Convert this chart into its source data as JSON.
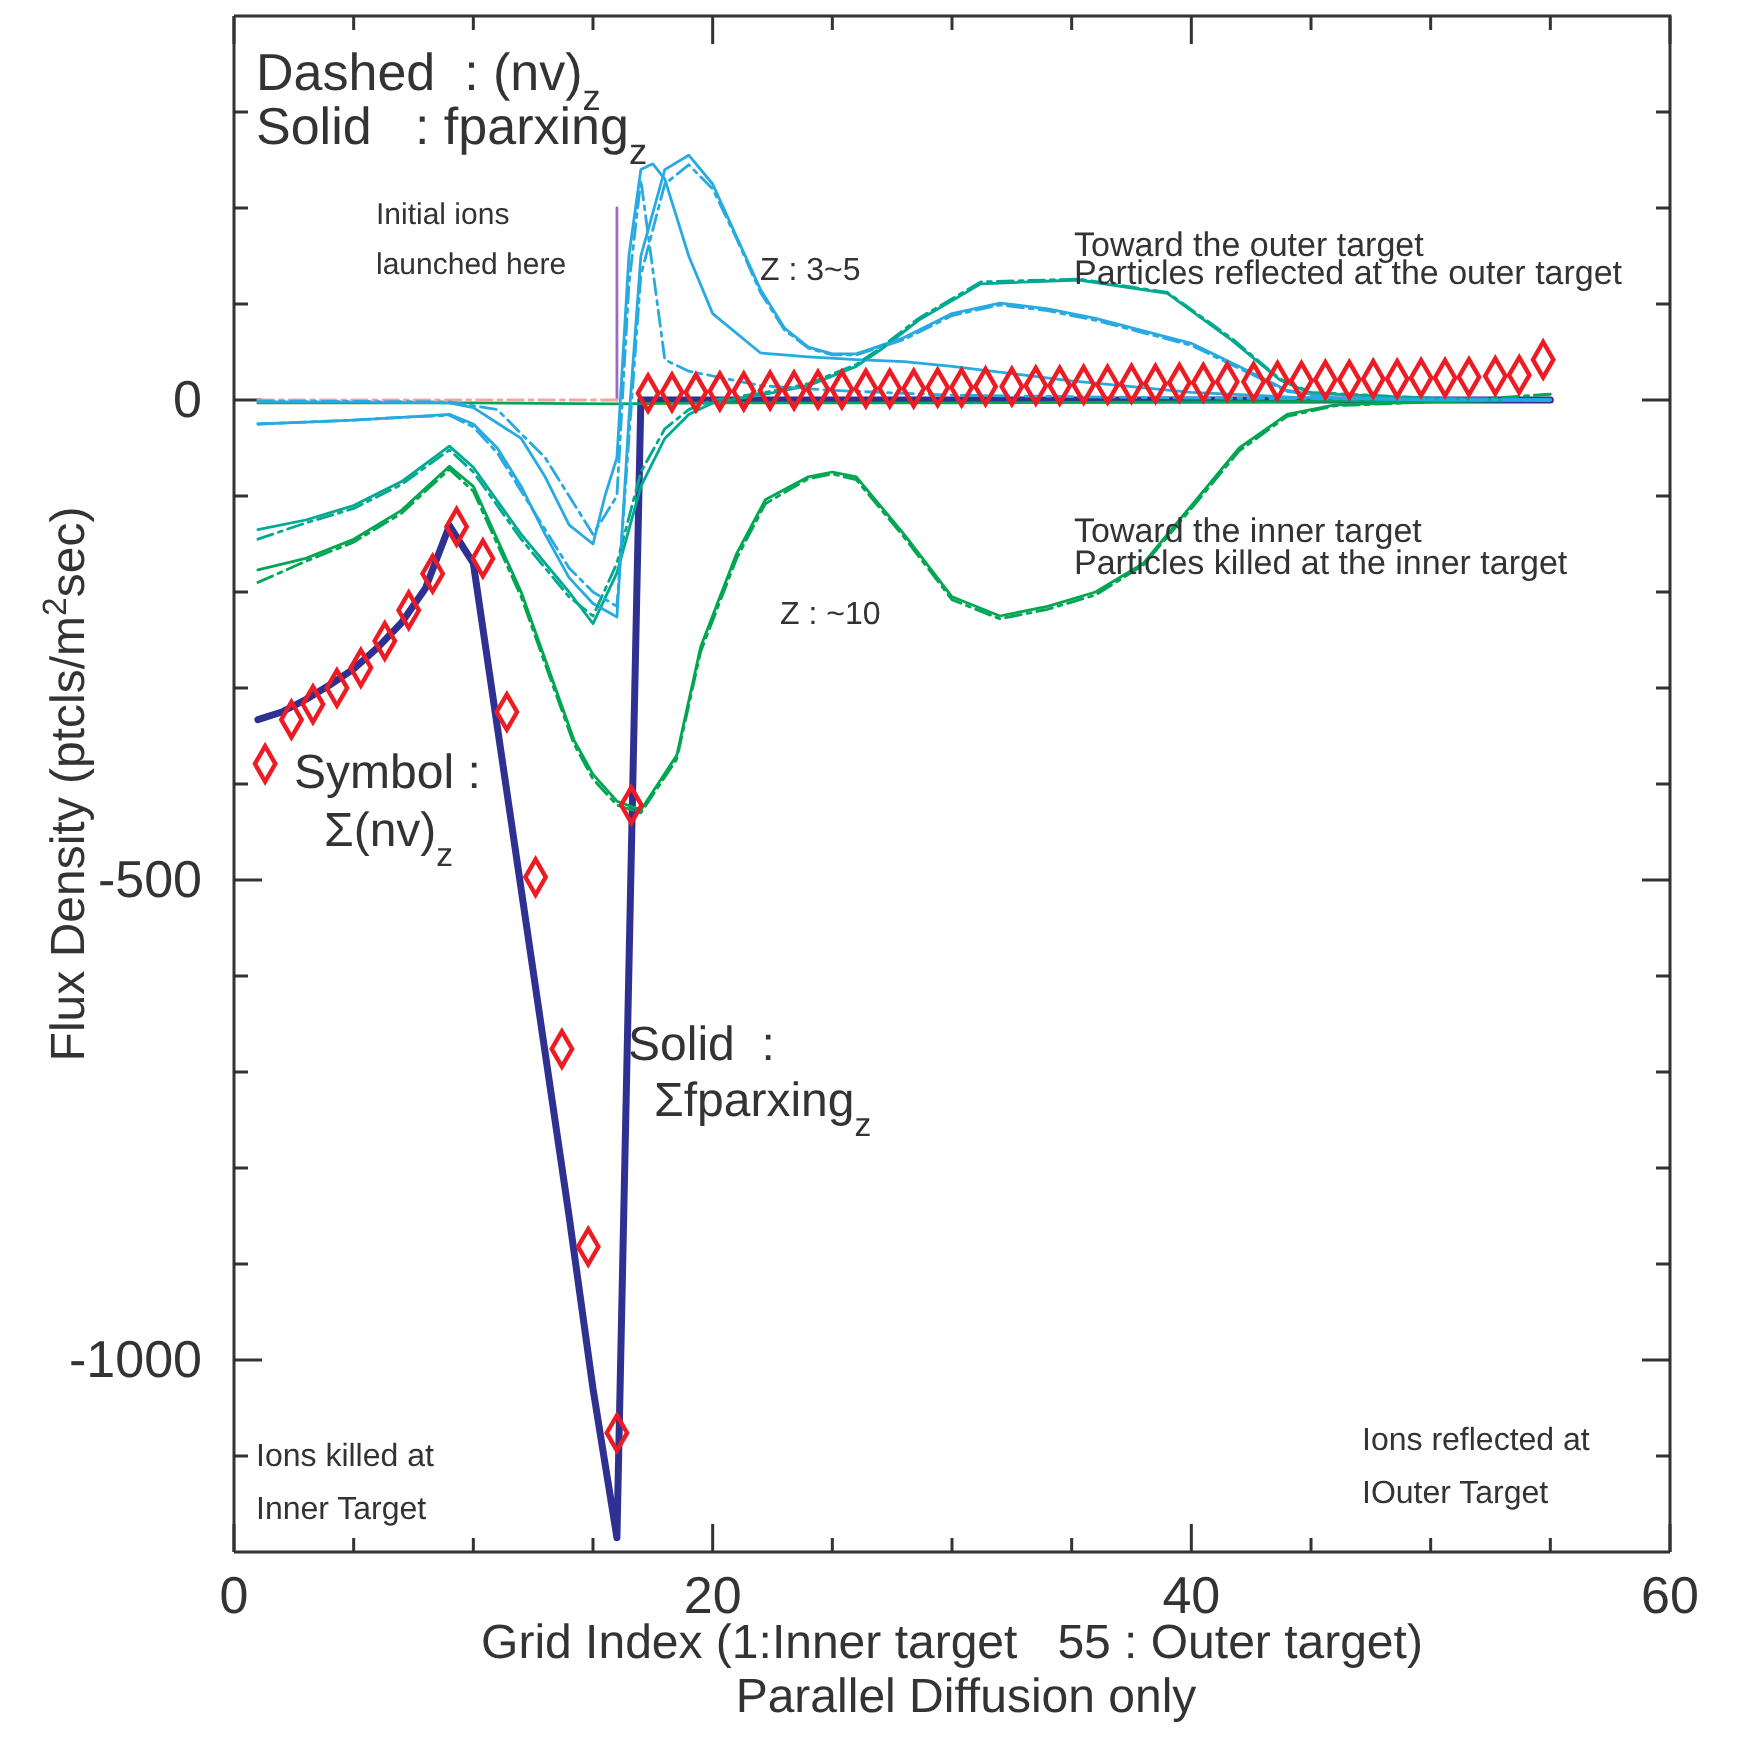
{
  "chart_data": {
    "type": "line",
    "xlabel": "Grid Index (1:Inner target   55 : Outer target)\nParallel Diffusion only",
    "ylabel": "Flux Density (ptcls/m$^{2}$sec)",
    "xlim": [
      0,
      60
    ],
    "ylim": [
      -1200,
      400
    ],
    "xticks": [
      0,
      {
        "value": 5,
        "label": null
      },
      {
        "value": 10,
        "label": null
      },
      {
        "value": 15,
        "label": null
      },
      20,
      {
        "value": 25,
        "label": null
      },
      {
        "value": 30,
        "label": null
      },
      {
        "value": 35,
        "label": null
      },
      40,
      {
        "value": 45,
        "label": null
      },
      {
        "value": 50,
        "label": null
      },
      {
        "value": 55,
        "label": null
      },
      60
    ],
    "yticks": [
      {
        "value": -1100,
        "label": null
      },
      -1000,
      {
        "value": -900,
        "label": null
      },
      {
        "value": -800,
        "label": null
      },
      {
        "value": -700,
        "label": null
      },
      {
        "value": -600,
        "label": null
      },
      -500,
      {
        "value": -400,
        "label": null
      },
      {
        "value": -300,
        "label": null
      },
      {
        "value": -200,
        "label": null
      },
      {
        "value": -100,
        "label": null
      },
      0,
      {
        "value": 100,
        "label": null
      },
      {
        "value": 200,
        "label": null
      },
      {
        "value": 300,
        "label": null
      }
    ],
    "grid": false,
    "annotations": [
      "Dashed  : (nv)$_{z}$",
      "Solid   : fparxing$_{z}$",
      "Initial ions\nlaunched here",
      "Z : 3~5",
      "Toward the outer target",
      "Particles reflected at the outer target",
      "Toward the inner target",
      "Particles killed at the inner target",
      "Z : ~10",
      "Symbol :",
      "Σ(nv)$_{z}$",
      "Solid  :",
      "Σfparxing$_{z}$",
      "Ions killed at\nInner Target",
      "Ions reflected at\nIOuter Target"
    ],
    "series": [
      {
        "color": "#2e3192",
        "line_style": "solid",
        "x": [
          1,
          2,
          3,
          4,
          5,
          6,
          7,
          8,
          9,
          10,
          11,
          12,
          13,
          14,
          15,
          16,
          17,
          55
        ],
        "values": [
          -333,
          -325,
          -312,
          -297,
          -280,
          -258,
          -232,
          -196,
          -131,
          -170,
          -340,
          -510,
          -680,
          -850,
          -1030,
          -1185,
          0,
          0
        ]
      },
      {
        "color": "#f4a3a3",
        "line_style": "dashed",
        "x": [
          1,
          16
        ],
        "values": [
          0,
          0
        ]
      },
      {
        "color": "#00a651",
        "line_style": "solid",
        "x": [
          1,
          10,
          16,
          20,
          30,
          40,
          50,
          55
        ],
        "values": [
          -3,
          -3,
          -4,
          -3,
          -3,
          -2,
          -1,
          0
        ]
      },
      {
        "color": "#00a651",
        "line_style": "solid",
        "x": [
          1,
          3,
          5,
          7,
          9,
          10,
          12,
          12.5,
          13,
          14.2,
          15,
          16,
          17,
          18.5,
          19.5,
          21,
          22.2,
          24,
          25,
          26,
          28,
          30,
          32,
          34,
          36,
          38,
          40,
          42,
          44,
          46,
          50,
          55
        ],
        "values": [
          -177,
          -165,
          -145,
          -115,
          -69,
          -90,
          -200,
          -235,
          -270,
          -354,
          -390,
          -418,
          -427,
          -370,
          -257,
          -160,
          -104,
          -80,
          -75,
          -80,
          -140,
          -205,
          -225,
          -215,
          -200,
          -170,
          -110,
          -50,
          -15,
          -5,
          -2,
          0
        ]
      },
      {
        "color": "#00a651",
        "line_style": "dashed",
        "x": [
          1,
          3,
          5,
          7,
          9,
          10,
          12,
          13,
          14.2,
          15,
          16,
          17,
          18.5,
          19.5,
          21,
          22.2,
          24,
          25,
          26,
          28,
          30,
          32,
          34,
          36,
          38,
          40,
          42,
          44,
          46,
          50,
          55
        ],
        "values": [
          -190,
          -168,
          -148,
          -118,
          -72,
          -95,
          -205,
          -275,
          -358,
          -395,
          -422,
          -430,
          -374,
          -262,
          -165,
          -108,
          -82,
          -77,
          -83,
          -143,
          -208,
          -228,
          -218,
          -203,
          -172,
          -113,
          -53,
          -17,
          -6,
          -2,
          6
        ]
      },
      {
        "color": "#00a98f",
        "line_style": "solid",
        "x": [
          1,
          3,
          5,
          7,
          9,
          10,
          12,
          14,
          15,
          16,
          17,
          18,
          19,
          20,
          22,
          24,
          26,
          27,
          28.6,
          31.2,
          35.3,
          39,
          41.7,
          43.7,
          45,
          50,
          55
        ],
        "values": [
          -135,
          -125,
          -110,
          -85,
          -48,
          -70,
          -140,
          -200,
          -233,
          -180,
          -90,
          -40,
          -15,
          -3,
          5,
          15,
          35,
          52,
          83,
          121,
          125,
          111,
          62,
          21,
          7,
          2,
          0
        ]
      },
      {
        "color": "#00a98f",
        "line_style": "dashed",
        "x": [
          1,
          3,
          5,
          7,
          9,
          10,
          12,
          14,
          15,
          16,
          17,
          18,
          19,
          20,
          22,
          24,
          26,
          27,
          28.6,
          31.2,
          35.3,
          39,
          41.7,
          43.7,
          45,
          50,
          53.5
        ],
        "values": [
          -145,
          -128,
          -113,
          -88,
          -52,
          -75,
          -145,
          -205,
          -225,
          -170,
          -75,
          -30,
          -10,
          0,
          7,
          17,
          37,
          54,
          85,
          123,
          126,
          112,
          64,
          22,
          8,
          2,
          0
        ]
      },
      {
        "color": "#27aae1",
        "line_style": "solid",
        "x": [
          1,
          3,
          5,
          7,
          9,
          10,
          11,
          12,
          13,
          14,
          15,
          16,
          16.5,
          17,
          18,
          19,
          20,
          21,
          22,
          23,
          24,
          25,
          26,
          28,
          30,
          32,
          34,
          36,
          38,
          40,
          42,
          44,
          46,
          50,
          55
        ],
        "values": [
          -25,
          -23,
          -21,
          -18,
          -15,
          -25,
          -50,
          -90,
          -140,
          -185,
          -212,
          -226,
          -20,
          150,
          240,
          255,
          225,
          170,
          115,
          75,
          55,
          48,
          48,
          65,
          90,
          101,
          95,
          85,
          72,
          59,
          35,
          10,
          2,
          0,
          0
        ]
      },
      {
        "color": "#27aae1",
        "line_style": "dashed",
        "x": [
          1,
          3,
          5,
          7,
          9,
          10,
          11,
          12,
          13,
          14,
          15,
          16,
          16.5,
          17,
          18,
          19,
          20,
          21,
          22,
          23,
          24,
          25,
          26,
          28,
          30,
          32,
          34,
          36,
          38,
          40,
          42,
          44,
          46,
          50,
          55
        ],
        "values": [
          -25,
          -23,
          -21,
          -18,
          -16,
          -28,
          -55,
          -95,
          -135,
          -175,
          -200,
          -215,
          -40,
          130,
          225,
          245,
          220,
          168,
          112,
          73,
          54,
          47,
          47,
          63,
          88,
          99,
          93,
          83,
          70,
          57,
          33,
          9,
          2,
          0,
          0
        ]
      },
      {
        "color": "#27aae1",
        "line_style": "solid",
        "x": [
          1,
          5,
          9,
          10,
          12,
          13,
          14,
          15,
          15.5,
          16,
          16.5,
          17,
          17.5,
          18,
          19,
          20,
          22,
          24,
          26,
          28,
          30,
          35,
          40,
          45,
          55
        ],
        "values": [
          -2,
          -2,
          -3,
          -8,
          -40,
          -80,
          -130,
          -150,
          -100,
          -60,
          150,
          240,
          246,
          230,
          150,
          90,
          49,
          45,
          42,
          40,
          35,
          20,
          8,
          2,
          0
        ]
      },
      {
        "color": "#27aae1",
        "line_style": "dashed",
        "x": [
          1,
          9,
          11,
          13,
          15,
          16,
          16.5,
          17,
          18,
          19,
          20,
          22,
          25,
          30,
          40,
          55
        ],
        "values": [
          -1,
          -2,
          -10,
          -60,
          -140,
          -100,
          120,
          229,
          42,
          30,
          25,
          15,
          10,
          5,
          2,
          0
        ]
      },
      {
        "color": "#9b6bc4",
        "line_style": "solid",
        "x": [
          16,
          16
        ],
        "values": [
          0,
          200
        ]
      },
      {
        "type": "scatter",
        "color": "#ed1c24",
        "marker": "diamond",
        "x": [
          1.3,
          2.4,
          3.3,
          4.3,
          5.3,
          6.3,
          7.3,
          8.3,
          9.3,
          10.4,
          11.4,
          12.6,
          13.7,
          14.8,
          16.0,
          16.6,
          17.3,
          18.3,
          19.3,
          20.3,
          21.3,
          22.4,
          23.4,
          24.4,
          25.4,
          26.4,
          27.4,
          28.4,
          29.4,
          30.4,
          31.4,
          32.5,
          33.5,
          34.5,
          35.5,
          36.5,
          37.5,
          38.5,
          39.5,
          40.5,
          41.5,
          42.6,
          43.6,
          44.6,
          45.6,
          46.6,
          47.6,
          48.6,
          49.6,
          50.6,
          51.6,
          52.7,
          53.7,
          54.7
        ],
        "values": [
          -379,
          -333,
          -317,
          -300,
          -279,
          -251,
          -219,
          -181,
          -132,
          -165,
          -325,
          -497,
          -676,
          -882,
          -1076,
          -422,
          7,
          8,
          8,
          9,
          9,
          10,
          10,
          11,
          11,
          12,
          12,
          12,
          13,
          13,
          14,
          14,
          15,
          15,
          16,
          16,
          17,
          17,
          18,
          18,
          19,
          19,
          20,
          20,
          21,
          21,
          22,
          22,
          23,
          23,
          24,
          25,
          26,
          42
        ]
      }
    ]
  }
}
